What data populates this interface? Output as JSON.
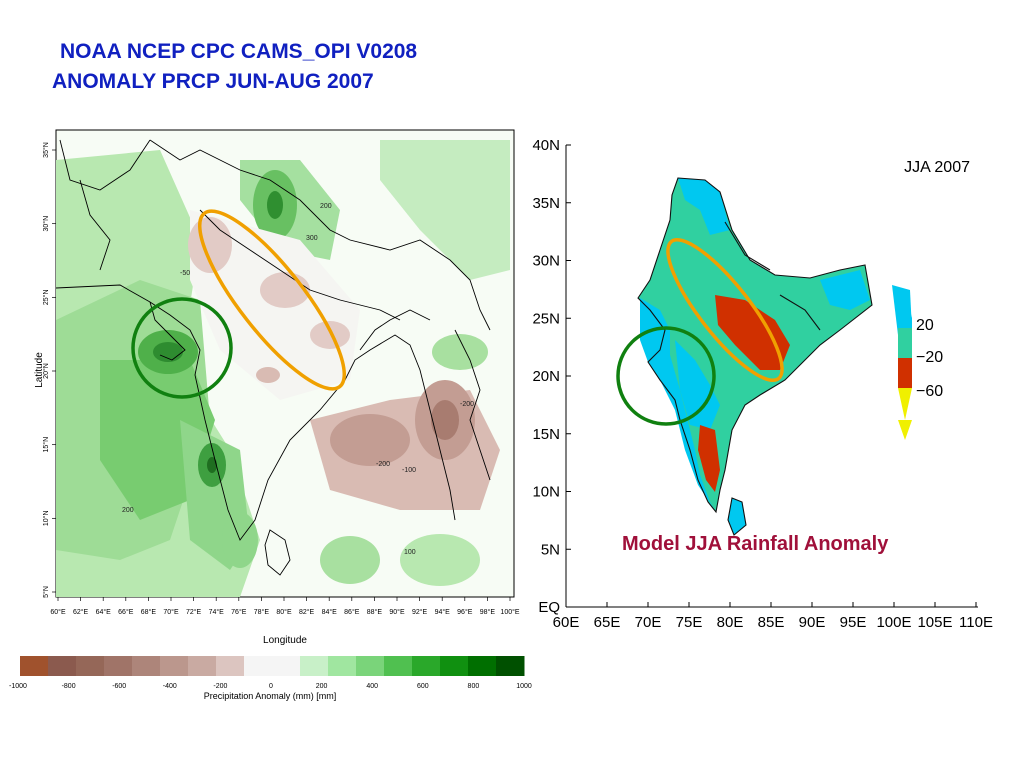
{
  "titles": {
    "line1": "NOAA NCEP CPC CAMS_OPI V0208",
    "line2": "ANOMALY PRCP JUN-AUG 2007"
  },
  "left_map": {
    "x_ticks": [
      "60°E",
      "62°E",
      "64°E",
      "66°E",
      "68°E",
      "70°E",
      "72°E",
      "74°E",
      "76°E",
      "78°E",
      "80°E",
      "82°E",
      "84°E",
      "86°E",
      "88°E",
      "90°E",
      "92°E",
      "94°E",
      "96°E",
      "98°E",
      "100°E"
    ],
    "y_ticks": [
      "5°N",
      "10°N",
      "15°N",
      "20°N",
      "25°N",
      "30°N",
      "35°N"
    ],
    "xlabel": "Longitude",
    "ylabel": "Latitude",
    "contour_labels": [
      "-50",
      "200",
      "300",
      "200",
      "-200",
      "-100",
      "-200",
      "100"
    ]
  },
  "colorbar": {
    "labels": [
      "-1000",
      "-800",
      "-600",
      "-400",
      "-200",
      "0",
      "200",
      "400",
      "600",
      "800",
      "1000"
    ],
    "label_text": "Precipitation Anomaly (mm) [mm]",
    "colors": [
      "#a0522d",
      "#8b5a4e",
      "#956758",
      "#a07468",
      "#ad857a",
      "#bb978d",
      "#c9aaa2",
      "#dcc5c0",
      "#f5f5f5",
      "#f5f5f5",
      "#c8f0c8",
      "#a0e6a0",
      "#7ad47a",
      "#50c050",
      "#2aa82a",
      "#109010",
      "#006f00",
      "#005000"
    ]
  },
  "right_map": {
    "panel_label": "JJA 2007",
    "x_ticks": [
      "60E",
      "65E",
      "70E",
      "75E",
      "80E",
      "85E",
      "90E",
      "95E",
      "100E",
      "105E",
      "110E"
    ],
    "y_ticks": [
      "EQ",
      "5N",
      "10N",
      "15N",
      "20N",
      "25N",
      "30N",
      "35N",
      "40N"
    ],
    "legend_labels": [
      "20",
      "−20",
      "−60"
    ],
    "legend_colors": {
      "cyan": "#00c8f0",
      "teal": "#30d0a0",
      "red": "#d03000",
      "yellow": "#f0f000"
    },
    "caption": "Model JJA Rainfall Anomaly"
  },
  "annotation_colors": {
    "orange_ellipse": "#f0a000",
    "green_circle": "#108010"
  }
}
